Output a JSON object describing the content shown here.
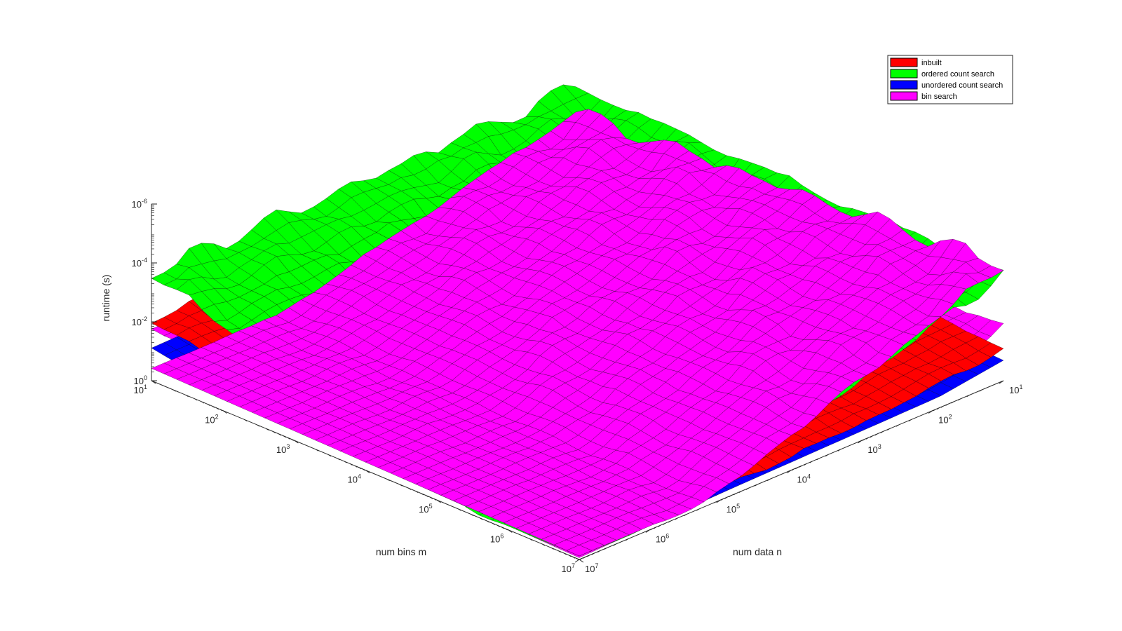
{
  "chart_data": {
    "type": "surface3d",
    "xlabel": "num bins m",
    "ylabel": "num data n",
    "zlabel": "runtime (s)",
    "x_scale": "log",
    "y_scale": "log",
    "z_scale": "log",
    "z_direction": "reversed",
    "x_ticks": [
      {
        "base": "10",
        "exp": "1"
      },
      {
        "base": "10",
        "exp": "2"
      },
      {
        "base": "10",
        "exp": "3"
      },
      {
        "base": "10",
        "exp": "4"
      },
      {
        "base": "10",
        "exp": "5"
      },
      {
        "base": "10",
        "exp": "6"
      },
      {
        "base": "10",
        "exp": "7"
      }
    ],
    "y_ticks": [
      {
        "base": "10",
        "exp": "1"
      },
      {
        "base": "10",
        "exp": "2"
      },
      {
        "base": "10",
        "exp": "3"
      },
      {
        "base": "10",
        "exp": "4"
      },
      {
        "base": "10",
        "exp": "5"
      },
      {
        "base": "10",
        "exp": "6"
      },
      {
        "base": "10",
        "exp": "7"
      }
    ],
    "z_ticks": [
      {
        "base": "10",
        "exp": "-6"
      },
      {
        "base": "10",
        "exp": "-4"
      },
      {
        "base": "10",
        "exp": "-2"
      },
      {
        "base": "10",
        "exp": "0"
      }
    ],
    "xlim_log10": [
      1,
      7
    ],
    "ylim_log10": [
      1,
      7
    ],
    "zlim_log10": [
      -6,
      0
    ],
    "legend_position": "top-right",
    "grid": false,
    "series": [
      {
        "name": "inbuilt",
        "color": "#ff0000"
      },
      {
        "name": "ordered count search",
        "color": "#00ff00"
      },
      {
        "name": "unordered count search",
        "color": "#0000ff"
      },
      {
        "name": "bin search",
        "color": "#ff00ff"
      }
    ]
  }
}
